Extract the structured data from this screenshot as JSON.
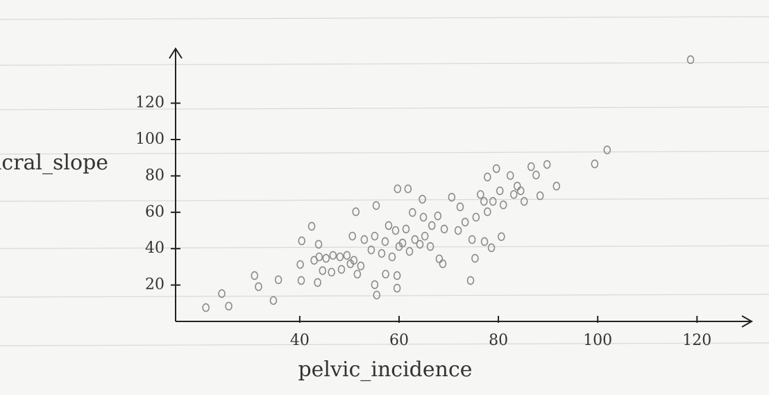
{
  "chart_data": {
    "type": "scatter",
    "x_label": "pelvic_incidence",
    "y_label": "Sacral_slope",
    "color": "#8a8a8a",
    "xlim": [
      15,
      131
    ],
    "ylim": [
      0,
      150
    ],
    "xticks": [
      40,
      60,
      80,
      100,
      120
    ],
    "yticks": [
      20,
      40,
      60,
      80,
      100,
      120
    ],
    "x": [
      21.1,
      25.7,
      24.3,
      30.9,
      31.7,
      35.7,
      34.7,
      40.3,
      40.1,
      40.4,
      42.4,
      43.8,
      42.9,
      43.9,
      45.3,
      46.7,
      48.1,
      49.5,
      50.9,
      44.6,
      46.4,
      48.4,
      50.2,
      52.3,
      51.6,
      43.6,
      55.1,
      55.5,
      59.6,
      57.3,
      59.6,
      51.3,
      55.4,
      59.7,
      61.8,
      64.7,
      62.7,
      64.9,
      67.8,
      70.6,
      72.3,
      75.5,
      66.6,
      69.1,
      71.9,
      73.3,
      50.6,
      53.0,
      55.1,
      57.2,
      57.9,
      59.3,
      61.4,
      60.7,
      63.2,
      65.2,
      54.4,
      56.5,
      58.6,
      60.0,
      62.1,
      64.2,
      66.3,
      68.1,
      68.8,
      74.4,
      75.3,
      74.7,
      77.2,
      78.6,
      80.6,
      77.8,
      77.1,
      76.4,
      77.8,
      79.6,
      82.4,
      80.3,
      78.9,
      81.0,
      83.1,
      84.5,
      85.2,
      83.8,
      86.6,
      87.6,
      89.8,
      88.4,
      91.7,
      99.4,
      101.9,
      118.7
    ],
    "y": [
      7.6,
      8.4,
      15.3,
      25.2,
      19.1,
      22.9,
      11.5,
      22.5,
      31.3,
      44.3,
      52.3,
      42.4,
      33.6,
      35.5,
      34.7,
      36.3,
      35.5,
      36.3,
      33.6,
      27.9,
      27.1,
      28.6,
      31.7,
      30.5,
      26.0,
      21.4,
      20.2,
      14.5,
      18.3,
      26.0,
      25.2,
      60.3,
      63.7,
      72.9,
      72.9,
      67.2,
      59.9,
      57.3,
      58.0,
      68.3,
      63.0,
      57.3,
      52.7,
      50.8,
      50.0,
      54.6,
      46.9,
      45.0,
      46.9,
      43.9,
      52.7,
      50.0,
      50.8,
      43.1,
      45.0,
      46.9,
      39.3,
      37.4,
      35.5,
      41.2,
      38.5,
      42.4,
      41.2,
      34.4,
      31.7,
      22.5,
      34.7,
      45.0,
      43.9,
      40.5,
      46.6,
      60.3,
      66.0,
      69.8,
      79.4,
      84.0,
      80.2,
      71.8,
      66.0,
      64.1,
      69.8,
      71.8,
      66.0,
      74.4,
      85.1,
      80.5,
      86.3,
      69.1,
      74.4,
      86.6,
      94.3,
      143.9
    ]
  }
}
